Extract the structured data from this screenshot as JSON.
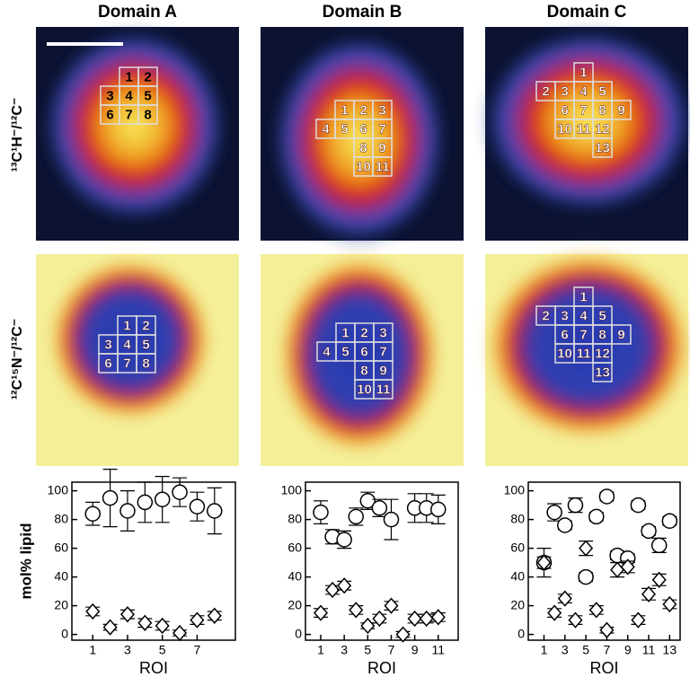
{
  "column_titles": [
    "Domain A",
    "Domain B",
    "Domain C"
  ],
  "row_labels": [
    "¹³C¹H⁻/¹²C⁻",
    "¹²C¹⁵N⁻/¹²C⁻"
  ],
  "roi_grids": [
    [
      [
        null,
        "1",
        "2"
      ],
      [
        "3",
        "4",
        "5"
      ],
      [
        "6",
        "7",
        "8"
      ]
    ],
    [
      [
        null,
        "1",
        "2",
        "3"
      ],
      [
        "4",
        "5",
        "6",
        "7"
      ],
      [
        null,
        null,
        "8",
        "9"
      ],
      [
        null,
        null,
        "10",
        "11"
      ]
    ],
    [
      [
        null,
        null,
        "1",
        null,
        null
      ],
      [
        "2",
        "3",
        "4",
        "5",
        null
      ],
      [
        null,
        "6",
        "7",
        "8",
        "9"
      ],
      [
        null,
        "10",
        "11",
        "12",
        null
      ],
      [
        null,
        null,
        null,
        "13",
        null
      ]
    ]
  ],
  "chart_data": [
    {
      "type": "scatter",
      "ylabel": "mol% lipid",
      "xlabel": "ROI",
      "x": [
        1,
        2,
        3,
        4,
        5,
        6,
        7,
        8
      ],
      "xlim": [
        -0.2,
        9.2
      ],
      "xticks": [
        1,
        3,
        5,
        7
      ],
      "ylim": [
        -4,
        106
      ],
      "yticks": [
        0,
        20,
        40,
        60,
        80,
        100
      ],
      "series": [
        {
          "marker": "circle",
          "color": "#000000",
          "values": [
            84,
            95,
            86,
            92,
            94,
            99,
            89,
            86
          ],
          "errors": [
            8,
            20,
            14,
            14,
            16,
            10,
            10,
            16
          ]
        },
        {
          "marker": "diamond",
          "color": "#000000",
          "values": [
            16,
            5,
            14,
            8,
            6,
            1,
            10,
            13
          ],
          "errors": [
            3,
            2,
            3,
            3,
            3,
            2,
            3,
            3
          ]
        }
      ]
    },
    {
      "type": "scatter",
      "xlabel": "ROI",
      "x": [
        1,
        2,
        3,
        4,
        5,
        6,
        7,
        8,
        9,
        10,
        11
      ],
      "xlim": [
        -0.3,
        12.7
      ],
      "xticks": [
        1,
        3,
        5,
        7,
        9,
        11
      ],
      "ylim": [
        -4,
        106
      ],
      "yticks": [
        0,
        20,
        40,
        60,
        80,
        100
      ],
      "series": [
        {
          "marker": "circle",
          "color": "#000000",
          "values": [
            85,
            68,
            66,
            82,
            93,
            88,
            80,
            null,
            88,
            88,
            87
          ],
          "errors": [
            8,
            5,
            6,
            6,
            6,
            6,
            14,
            null,
            10,
            10,
            10
          ]
        },
        {
          "marker": "diamond",
          "color": "#000000",
          "values": [
            15,
            31,
            34,
            17,
            6,
            11,
            20,
            0,
            11,
            11,
            12
          ],
          "errors": [
            3,
            3,
            3,
            3,
            2,
            3,
            3,
            2,
            3,
            3,
            3
          ]
        }
      ]
    },
    {
      "type": "scatter",
      "xlabel": "ROI",
      "x": [
        1,
        2,
        3,
        4,
        5,
        6,
        7,
        8,
        9,
        10,
        11,
        12,
        13
      ],
      "xlim": [
        -0.5,
        14
      ],
      "xticks": [
        1,
        3,
        5,
        7,
        9,
        11,
        13
      ],
      "ylim": [
        -4,
        106
      ],
      "yticks": [
        0,
        20,
        40,
        60,
        80,
        100
      ],
      "series": [
        {
          "marker": "circle",
          "color": "#000000",
          "values": [
            50,
            85,
            76,
            90,
            40,
            82,
            96,
            55,
            53,
            90,
            72,
            62,
            79
          ],
          "errors": [
            10,
            6,
            3,
            5,
            3,
            3,
            3,
            3,
            3,
            3,
            3,
            5,
            3
          ]
        },
        {
          "marker": "diamond",
          "color": "#000000",
          "values": [
            50,
            15,
            25,
            10,
            60,
            17,
            3,
            45,
            47,
            10,
            28,
            38,
            21
          ],
          "errors": [
            4,
            3,
            3,
            3,
            5,
            3,
            2,
            5,
            4,
            3,
            4,
            4,
            3
          ]
        }
      ]
    }
  ]
}
